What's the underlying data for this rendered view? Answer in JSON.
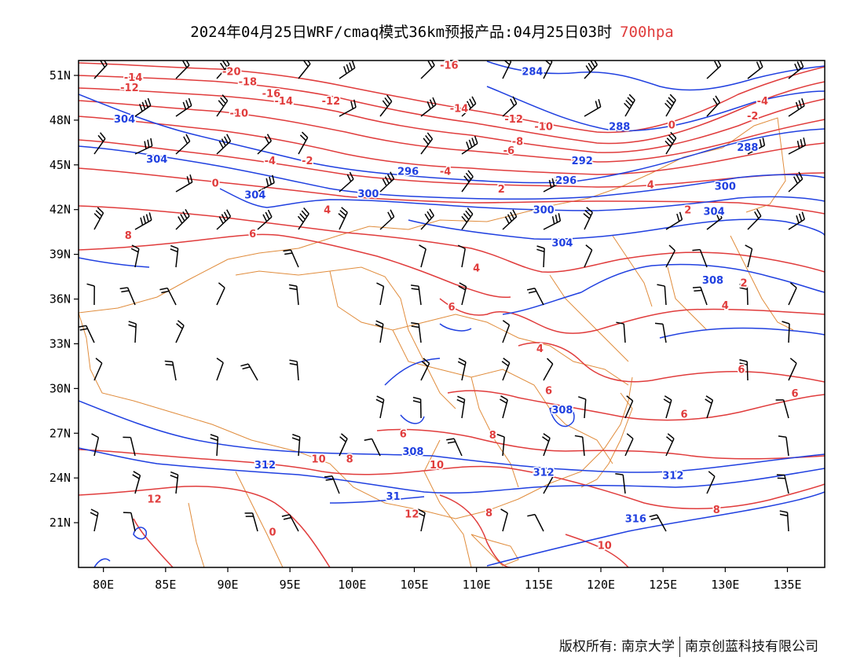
{
  "title": {
    "main": "2024年04月25日WRF/cmaq模式36km预报产品:04月25日03时",
    "level": "700hpa",
    "level_color": "#e03c3c"
  },
  "axes": {
    "lon_labels": [
      "80E",
      "85E",
      "90E",
      "95E",
      "100E",
      "105E",
      "110E",
      "115E",
      "120E",
      "125E",
      "130E",
      "135E"
    ],
    "lon_values": [
      80,
      85,
      90,
      95,
      100,
      105,
      110,
      115,
      120,
      125,
      130,
      135
    ],
    "lat_labels": [
      "51N",
      "48N",
      "45N",
      "42N",
      "39N",
      "36N",
      "33N",
      "30N",
      "27N",
      "24N",
      "21N"
    ],
    "lat_values": [
      51,
      48,
      45,
      42,
      39,
      36,
      33,
      30,
      27,
      24,
      21
    ],
    "lon_range": [
      78,
      138
    ],
    "lat_range": [
      18,
      52
    ]
  },
  "colors": {
    "temperature": "#e03c3c",
    "geopotential": "#2040e0",
    "boundary": "#e08c3c",
    "wind": "#000000"
  },
  "geopotential_labels": [
    {
      "text": "284",
      "lon": 114.5,
      "lat": 51.3
    },
    {
      "text": "304",
      "lon": 81.7,
      "lat": 48.1
    },
    {
      "text": "304",
      "lon": 84.3,
      "lat": 45.4
    },
    {
      "text": "304",
      "lon": 92.2,
      "lat": 43.0
    },
    {
      "text": "296",
      "lon": 104.5,
      "lat": 44.6
    },
    {
      "text": "300",
      "lon": 101.3,
      "lat": 43.1
    },
    {
      "text": "288",
      "lon": 121.5,
      "lat": 47.6
    },
    {
      "text": "292",
      "lon": 118.5,
      "lat": 45.3
    },
    {
      "text": "296",
      "lon": 117.2,
      "lat": 44.0
    },
    {
      "text": "288",
      "lon": 131.8,
      "lat": 46.2
    },
    {
      "text": "300",
      "lon": 130.0,
      "lat": 43.6
    },
    {
      "text": "300",
      "lon": 115.4,
      "lat": 42.0
    },
    {
      "text": "304",
      "lon": 129.1,
      "lat": 41.9
    },
    {
      "text": "304",
      "lon": 116.9,
      "lat": 39.8
    },
    {
      "text": "308",
      "lon": 129.0,
      "lat": 37.3
    },
    {
      "text": "308",
      "lon": 116.9,
      "lat": 28.6
    },
    {
      "text": "308",
      "lon": 104.9,
      "lat": 25.8
    },
    {
      "text": "312",
      "lon": 93.0,
      "lat": 24.9
    },
    {
      "text": "312",
      "lon": 115.4,
      "lat": 24.4
    },
    {
      "text": "312",
      "lon": 125.8,
      "lat": 24.2
    },
    {
      "text": "316",
      "lon": 122.8,
      "lat": 21.3
    },
    {
      "text": "31",
      "lon": 103.3,
      "lat": 22.8
    }
  ],
  "temperature_labels": [
    {
      "text": "-16",
      "lon": 107.8,
      "lat": 51.7
    },
    {
      "text": "-14",
      "lon": 82.4,
      "lat": 50.9
    },
    {
      "text": "-12",
      "lon": 82.1,
      "lat": 50.2
    },
    {
      "text": "-20",
      "lon": 90.3,
      "lat": 51.3
    },
    {
      "text": "-18",
      "lon": 91.6,
      "lat": 50.6
    },
    {
      "text": "-16",
      "lon": 93.5,
      "lat": 49.8
    },
    {
      "text": "-14",
      "lon": 94.5,
      "lat": 49.3
    },
    {
      "text": "-12",
      "lon": 98.3,
      "lat": 49.3
    },
    {
      "text": "-10",
      "lon": 90.9,
      "lat": 48.5
    },
    {
      "text": "-14",
      "lon": 108.6,
      "lat": 48.8
    },
    {
      "text": "-12",
      "lon": 113.0,
      "lat": 48.1
    },
    {
      "text": "-10",
      "lon": 115.4,
      "lat": 47.6
    },
    {
      "text": "-8",
      "lon": 113.3,
      "lat": 46.6
    },
    {
      "text": "-6",
      "lon": 112.6,
      "lat": 46.0
    },
    {
      "text": "0",
      "lon": 125.7,
      "lat": 47.7
    },
    {
      "text": "-4",
      "lon": 133.0,
      "lat": 49.3
    },
    {
      "text": "-2",
      "lon": 132.2,
      "lat": 48.3
    },
    {
      "text": "-4",
      "lon": 93.4,
      "lat": 45.3
    },
    {
      "text": "-2",
      "lon": 96.4,
      "lat": 45.3
    },
    {
      "text": "-4",
      "lon": 107.5,
      "lat": 44.6
    },
    {
      "text": "0",
      "lon": 89.0,
      "lat": 43.8
    },
    {
      "text": "2",
      "lon": 112.0,
      "lat": 43.4
    },
    {
      "text": "2",
      "lon": 127.0,
      "lat": 42.0
    },
    {
      "text": "4",
      "lon": 98.0,
      "lat": 42.0
    },
    {
      "text": "6",
      "lon": 92.0,
      "lat": 40.4
    },
    {
      "text": "8",
      "lon": 82.0,
      "lat": 40.3
    },
    {
      "text": "4",
      "lon": 124.0,
      "lat": 43.7
    },
    {
      "text": "2",
      "lon": 131.5,
      "lat": 37.1
    },
    {
      "text": "4",
      "lon": 130.0,
      "lat": 35.6
    },
    {
      "text": "6",
      "lon": 108.0,
      "lat": 35.5
    },
    {
      "text": "4",
      "lon": 115.1,
      "lat": 32.7
    },
    {
      "text": "4",
      "lon": 110.0,
      "lat": 38.1
    },
    {
      "text": "6",
      "lon": 131.3,
      "lat": 31.3
    },
    {
      "text": "6",
      "lon": 135.6,
      "lat": 29.7
    },
    {
      "text": "6",
      "lon": 115.8,
      "lat": 29.9
    },
    {
      "text": "6",
      "lon": 126.7,
      "lat": 28.3
    },
    {
      "text": "6",
      "lon": 104.1,
      "lat": 27.0
    },
    {
      "text": "8",
      "lon": 111.3,
      "lat": 26.9
    },
    {
      "text": "8",
      "lon": 99.8,
      "lat": 25.3
    },
    {
      "text": "10",
      "lon": 97.3,
      "lat": 25.3
    },
    {
      "text": "10",
      "lon": 106.8,
      "lat": 24.9
    },
    {
      "text": "12",
      "lon": 84.1,
      "lat": 22.6
    },
    {
      "text": "12",
      "lon": 104.8,
      "lat": 21.6
    },
    {
      "text": "8",
      "lon": 111.0,
      "lat": 21.7
    },
    {
      "text": "8",
      "lon": 129.3,
      "lat": 21.9
    },
    {
      "text": "10",
      "lon": 120.3,
      "lat": 19.5
    },
    {
      "text": "0",
      "lon": 93.6,
      "lat": 20.4
    }
  ],
  "footer": {
    "left": "版权所有: 南京大学",
    "right": "南京创蓝科技有限公司"
  }
}
